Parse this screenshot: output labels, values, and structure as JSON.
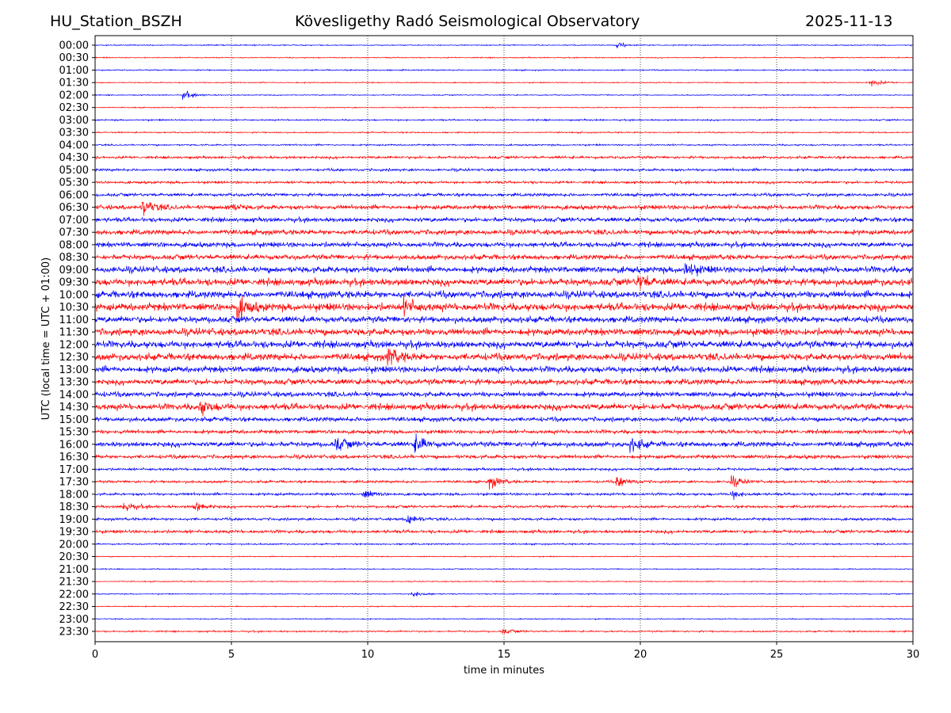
{
  "header": {
    "station": "HU_Station_BSZH",
    "title": "Kövesligethy Radó Seismological Observatory",
    "date": "2025-11-13"
  },
  "chart_data": {
    "type": "line",
    "title": "Kövesligethy Radó Seismological Observatory",
    "xlabel": "time in minutes",
    "ylabel": "UTC (local time = UTC + 01:00)",
    "xlim": [
      0,
      30
    ],
    "xticks": [
      "0",
      "5",
      "10",
      "15",
      "20",
      "25",
      "30"
    ],
    "grid": "vertical dotted at 5-minute intervals",
    "colors": [
      "#0000ff",
      "#ff0000"
    ],
    "rows": [
      "00:00",
      "00:30",
      "01:00",
      "01:30",
      "02:00",
      "02:30",
      "03:00",
      "03:30",
      "04:00",
      "04:30",
      "05:00",
      "05:30",
      "06:00",
      "06:30",
      "07:00",
      "07:30",
      "08:00",
      "08:30",
      "09:00",
      "09:30",
      "10:00",
      "10:30",
      "11:00",
      "11:30",
      "12:00",
      "12:30",
      "13:00",
      "13:30",
      "14:00",
      "14:30",
      "15:00",
      "15:30",
      "16:00",
      "16:30",
      "17:00",
      "17:30",
      "18:00",
      "18:30",
      "19:00",
      "19:30",
      "20:00",
      "20:30",
      "21:00",
      "21:30",
      "22:00",
      "22:30",
      "23:00",
      "23:30"
    ],
    "noise_level": [
      0.08,
      0.08,
      0.1,
      0.08,
      0.08,
      0.08,
      0.12,
      0.1,
      0.12,
      0.2,
      0.2,
      0.2,
      0.25,
      0.35,
      0.35,
      0.4,
      0.4,
      0.4,
      0.5,
      0.55,
      0.55,
      0.6,
      0.5,
      0.55,
      0.55,
      0.55,
      0.5,
      0.45,
      0.4,
      0.5,
      0.35,
      0.3,
      0.4,
      0.3,
      0.2,
      0.2,
      0.2,
      0.2,
      0.2,
      0.25,
      0.12,
      0.08,
      0.08,
      0.08,
      0.08,
      0.08,
      0.08,
      0.12
    ],
    "events": [
      [
        0,
        19.2,
        0.4
      ],
      [
        3,
        28.5,
        0.5
      ],
      [
        4,
        3.3,
        0.6
      ],
      [
        13,
        1.8,
        1.2
      ],
      [
        13,
        4.9,
        0.6
      ],
      [
        18,
        21.7,
        1.2
      ],
      [
        19,
        20,
        1.2
      ],
      [
        21,
        5.3,
        1.6
      ],
      [
        21,
        11.4,
        1.2
      ],
      [
        25,
        10.8,
        1.3
      ],
      [
        29,
        3.9,
        1.0
      ],
      [
        32,
        8.9,
        1.0
      ],
      [
        32,
        11.8,
        1.3
      ],
      [
        32,
        19.7,
        1.0
      ],
      [
        35,
        14.5,
        1.0
      ],
      [
        35,
        19.2,
        0.9
      ],
      [
        35,
        23.4,
        0.8
      ],
      [
        36,
        9.9,
        0.6
      ],
      [
        36,
        23.4,
        0.6
      ],
      [
        37,
        1.1,
        0.8
      ],
      [
        37,
        3.7,
        0.8
      ],
      [
        38,
        11.5,
        0.8
      ],
      [
        44,
        11.7,
        0.5
      ],
      [
        47,
        15,
        0.4
      ]
    ]
  }
}
